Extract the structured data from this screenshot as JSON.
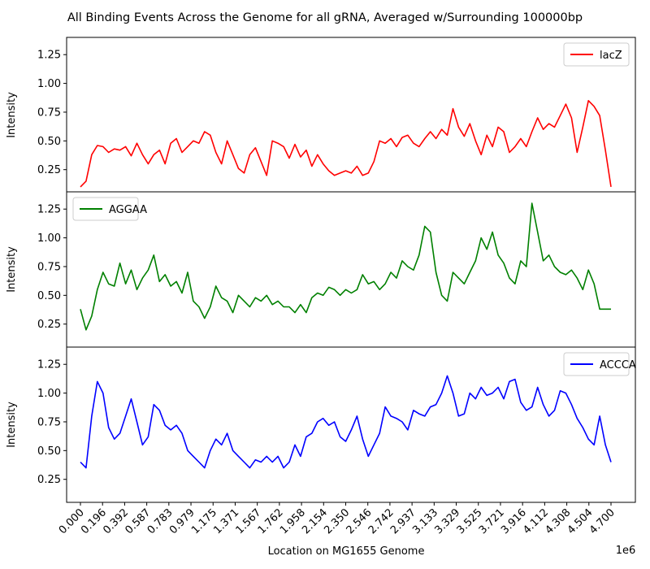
{
  "chart_data": {
    "type": "line",
    "title": "All Binding Events Across the Genome for all gRNA, Averaged w/Surrounding 100000bp",
    "xlabel": "Location on MG1655 Genome",
    "x_offset_text": "1e6",
    "xlim": [
      0.0,
      4.7
    ],
    "x_tick_labels": [
      "0.000",
      "0.196",
      "0.392",
      "0.587",
      "0.783",
      "0.979",
      "1.175",
      "1.371",
      "1.567",
      "1.762",
      "1.958",
      "2.154",
      "2.350",
      "2.546",
      "2.742",
      "2.937",
      "3.133",
      "3.329",
      "3.525",
      "3.721",
      "3.916",
      "4.112",
      "4.308",
      "4.504",
      "4.700"
    ],
    "grid": false,
    "subplots": [
      {
        "name": "lacZ",
        "color": "#ff0000",
        "legend_position": "top-right",
        "ylabel": "Intensity",
        "ylim": [
          0.05,
          1.4
        ],
        "y_ticks": [
          "0.25",
          "0.50",
          "0.75",
          "1.00",
          "1.25"
        ],
        "x": [
          0.0,
          0.05,
          0.1,
          0.15,
          0.2,
          0.25,
          0.3,
          0.35,
          0.4,
          0.45,
          0.5,
          0.55,
          0.6,
          0.65,
          0.7,
          0.75,
          0.8,
          0.85,
          0.9,
          0.95,
          1.0,
          1.05,
          1.1,
          1.15,
          1.2,
          1.25,
          1.3,
          1.35,
          1.4,
          1.45,
          1.5,
          1.55,
          1.6,
          1.65,
          1.7,
          1.75,
          1.8,
          1.85,
          1.9,
          1.95,
          2.0,
          2.05,
          2.1,
          2.15,
          2.2,
          2.25,
          2.3,
          2.35,
          2.4,
          2.45,
          2.5,
          2.55,
          2.6,
          2.65,
          2.7,
          2.75,
          2.8,
          2.85,
          2.9,
          2.95,
          3.0,
          3.05,
          3.1,
          3.15,
          3.2,
          3.25,
          3.3,
          3.35,
          3.4,
          3.45,
          3.5,
          3.55,
          3.6,
          3.65,
          3.7,
          3.75,
          3.8,
          3.85,
          3.9,
          3.95,
          4.0,
          4.05,
          4.1,
          4.15,
          4.2,
          4.25,
          4.3,
          4.35,
          4.4,
          4.45,
          4.5,
          4.55,
          4.6,
          4.65,
          4.7
        ],
        "y": [
          0.1,
          0.15,
          0.38,
          0.46,
          0.45,
          0.4,
          0.43,
          0.42,
          0.45,
          0.37,
          0.48,
          0.38,
          0.3,
          0.38,
          0.42,
          0.3,
          0.48,
          0.52,
          0.4,
          0.45,
          0.5,
          0.48,
          0.58,
          0.55,
          0.4,
          0.3,
          0.5,
          0.38,
          0.26,
          0.22,
          0.38,
          0.44,
          0.32,
          0.2,
          0.5,
          0.48,
          0.45,
          0.35,
          0.47,
          0.36,
          0.42,
          0.28,
          0.38,
          0.3,
          0.24,
          0.2,
          0.22,
          0.24,
          0.22,
          0.28,
          0.2,
          0.22,
          0.32,
          0.5,
          0.48,
          0.52,
          0.45,
          0.53,
          0.55,
          0.48,
          0.45,
          0.52,
          0.58,
          0.52,
          0.6,
          0.55,
          0.78,
          0.62,
          0.54,
          0.65,
          0.5,
          0.38,
          0.55,
          0.45,
          0.62,
          0.58,
          0.4,
          0.45,
          0.52,
          0.45,
          0.58,
          0.7,
          0.6,
          0.65,
          0.62,
          0.72,
          0.82,
          0.7,
          0.4,
          0.62,
          0.85,
          0.8,
          0.72,
          0.42,
          0.1
        ]
      },
      {
        "name": "AGGAA",
        "color": "#008000",
        "legend_position": "top-left",
        "ylabel": "Intensity",
        "ylim": [
          0.05,
          1.4
        ],
        "y_ticks": [
          "0.25",
          "0.50",
          "0.75",
          "1.00",
          "1.25"
        ],
        "x": [
          0.0,
          0.05,
          0.1,
          0.15,
          0.2,
          0.25,
          0.3,
          0.35,
          0.4,
          0.45,
          0.5,
          0.55,
          0.6,
          0.65,
          0.7,
          0.75,
          0.8,
          0.85,
          0.9,
          0.95,
          1.0,
          1.05,
          1.1,
          1.15,
          1.2,
          1.25,
          1.3,
          1.35,
          1.4,
          1.45,
          1.5,
          1.55,
          1.6,
          1.65,
          1.7,
          1.75,
          1.8,
          1.85,
          1.9,
          1.95,
          2.0,
          2.05,
          2.1,
          2.15,
          2.2,
          2.25,
          2.3,
          2.35,
          2.4,
          2.45,
          2.5,
          2.55,
          2.6,
          2.65,
          2.7,
          2.75,
          2.8,
          2.85,
          2.9,
          2.95,
          3.0,
          3.05,
          3.1,
          3.15,
          3.2,
          3.25,
          3.3,
          3.35,
          3.4,
          3.45,
          3.5,
          3.55,
          3.6,
          3.65,
          3.7,
          3.75,
          3.8,
          3.85,
          3.9,
          3.95,
          4.0,
          4.05,
          4.1,
          4.15,
          4.2,
          4.25,
          4.3,
          4.35,
          4.4,
          4.45,
          4.5,
          4.55,
          4.6,
          4.65,
          4.7
        ],
        "y": [
          0.38,
          0.2,
          0.32,
          0.55,
          0.7,
          0.6,
          0.58,
          0.78,
          0.6,
          0.72,
          0.55,
          0.65,
          0.72,
          0.85,
          0.62,
          0.68,
          0.58,
          0.62,
          0.52,
          0.7,
          0.45,
          0.4,
          0.3,
          0.4,
          0.58,
          0.48,
          0.45,
          0.35,
          0.5,
          0.45,
          0.4,
          0.48,
          0.45,
          0.5,
          0.42,
          0.45,
          0.4,
          0.4,
          0.35,
          0.42,
          0.35,
          0.48,
          0.52,
          0.5,
          0.57,
          0.55,
          0.5,
          0.55,
          0.52,
          0.55,
          0.68,
          0.6,
          0.62,
          0.55,
          0.6,
          0.7,
          0.65,
          0.8,
          0.75,
          0.72,
          0.85,
          1.1,
          1.05,
          0.7,
          0.5,
          0.45,
          0.7,
          0.65,
          0.6,
          0.7,
          0.8,
          1.0,
          0.9,
          1.05,
          0.85,
          0.78,
          0.65,
          0.6,
          0.8,
          0.75,
          1.3,
          1.05,
          0.8,
          0.85,
          0.75,
          0.7,
          0.68,
          0.72,
          0.65,
          0.55,
          0.72,
          0.6,
          0.38,
          0.38,
          0.38
        ]
      },
      {
        "name": "ACCCA",
        "color": "#0000ff",
        "legend_position": "top-right",
        "ylabel": "Intensity",
        "xlabel": "Location on MG1655 Genome",
        "ylim": [
          0.05,
          1.4
        ],
        "y_ticks": [
          "0.25",
          "0.50",
          "0.75",
          "1.00",
          "1.25"
        ],
        "x": [
          0.0,
          0.05,
          0.1,
          0.15,
          0.2,
          0.25,
          0.3,
          0.35,
          0.4,
          0.45,
          0.5,
          0.55,
          0.6,
          0.65,
          0.7,
          0.75,
          0.8,
          0.85,
          0.9,
          0.95,
          1.0,
          1.05,
          1.1,
          1.15,
          1.2,
          1.25,
          1.3,
          1.35,
          1.4,
          1.45,
          1.5,
          1.55,
          1.6,
          1.65,
          1.7,
          1.75,
          1.8,
          1.85,
          1.9,
          1.95,
          2.0,
          2.05,
          2.1,
          2.15,
          2.2,
          2.25,
          2.3,
          2.35,
          2.4,
          2.45,
          2.5,
          2.55,
          2.6,
          2.65,
          2.7,
          2.75,
          2.8,
          2.85,
          2.9,
          2.95,
          3.0,
          3.05,
          3.1,
          3.15,
          3.2,
          3.25,
          3.3,
          3.35,
          3.4,
          3.45,
          3.5,
          3.55,
          3.6,
          3.65,
          3.7,
          3.75,
          3.8,
          3.85,
          3.9,
          3.95,
          4.0,
          4.05,
          4.1,
          4.15,
          4.2,
          4.25,
          4.3,
          4.35,
          4.4,
          4.45,
          4.5,
          4.55,
          4.6,
          4.65,
          4.7
        ],
        "y": [
          0.4,
          0.35,
          0.8,
          1.1,
          1.0,
          0.7,
          0.6,
          0.65,
          0.8,
          0.95,
          0.75,
          0.55,
          0.62,
          0.9,
          0.85,
          0.72,
          0.68,
          0.72,
          0.65,
          0.5,
          0.45,
          0.4,
          0.35,
          0.5,
          0.6,
          0.55,
          0.65,
          0.5,
          0.45,
          0.4,
          0.35,
          0.42,
          0.4,
          0.45,
          0.4,
          0.45,
          0.35,
          0.4,
          0.55,
          0.45,
          0.62,
          0.65,
          0.75,
          0.78,
          0.72,
          0.75,
          0.62,
          0.58,
          0.68,
          0.8,
          0.6,
          0.45,
          0.55,
          0.65,
          0.88,
          0.8,
          0.78,
          0.75,
          0.68,
          0.85,
          0.82,
          0.8,
          0.88,
          0.9,
          1.0,
          1.15,
          1.0,
          0.8,
          0.82,
          1.0,
          0.95,
          1.05,
          0.98,
          1.0,
          1.05,
          0.95,
          1.1,
          1.12,
          0.92,
          0.85,
          0.88,
          1.05,
          0.9,
          0.8,
          0.85,
          1.02,
          1.0,
          0.9,
          0.78,
          0.7,
          0.6,
          0.55,
          0.8,
          0.55,
          0.4
        ]
      }
    ]
  }
}
